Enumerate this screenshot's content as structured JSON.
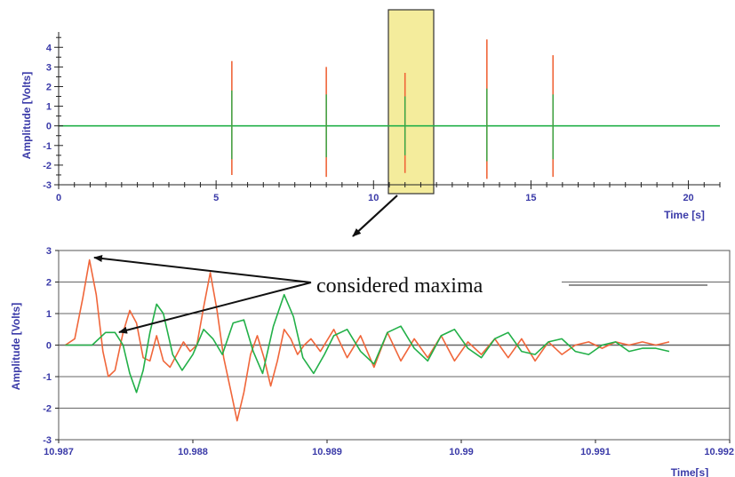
{
  "colors": {
    "series_red": "#f0663a",
    "series_green": "#22b048",
    "axis_text": "#3a3aa8",
    "highlight_fill": "#f4ec9c",
    "grid": "#666666"
  },
  "annotation": {
    "text": "considered maxima"
  },
  "chart_data": [
    {
      "type": "line",
      "title": "",
      "xlabel": "Time [s]",
      "ylabel": "Amplitude [Volts]",
      "xlim": [
        0,
        21
      ],
      "ylim": [
        -3,
        4.6
      ],
      "xticks": [
        0,
        5,
        10,
        15,
        20
      ],
      "yticks": [
        -3,
        -2,
        -1,
        0,
        1,
        2,
        3,
        4
      ],
      "grid": false,
      "baseline": 0,
      "highlight_region": [
        10.6,
        11.9
      ],
      "series": [
        {
          "color": "#f0663a",
          "x": [
            5.5,
            8.5,
            11.0,
            13.6,
            15.7
          ],
          "values": [
            3.3,
            3.0,
            2.7,
            4.4,
            3.6
          ],
          "min_values": [
            -2.5,
            -2.6,
            -2.4,
            -2.7,
            -2.6
          ]
        },
        {
          "color": "#22b048",
          "x": [
            5.5,
            8.5,
            11.0,
            13.6,
            15.7
          ],
          "values": [
            1.8,
            1.6,
            1.5,
            1.9,
            1.6
          ],
          "min_values": [
            -1.7,
            -1.6,
            -1.5,
            -1.8,
            -1.7
          ]
        }
      ]
    },
    {
      "type": "line",
      "title": "",
      "xlabel": "Time[s]",
      "ylabel": "Amplitude [Volts]",
      "xlim": [
        10.987,
        10.992
      ],
      "ylim": [
        -3,
        3
      ],
      "xticks": [
        10.987,
        10.988,
        10.989,
        10.99,
        10.991,
        10.992
      ],
      "xtick_labels": [
        "10.987",
        "10.988",
        "10.989",
        "10.99",
        "10.991",
        "10.992"
      ],
      "yticks": [
        -3,
        -2,
        -1,
        0,
        1,
        2,
        3
      ],
      "grid": true,
      "series": [
        {
          "color": "#f0663a",
          "x": [
            10.98705,
            10.98712,
            10.98718,
            10.98723,
            10.98728,
            10.98733,
            10.98737,
            10.98742,
            10.98748,
            10.98753,
            10.98758,
            10.98763,
            10.98768,
            10.98773,
            10.98778,
            10.98783,
            10.98788,
            10.98793,
            10.98798,
            10.98803,
            10.98808,
            10.98813,
            10.98818,
            10.98823,
            10.98828,
            10.98833,
            10.98838,
            10.98843,
            10.98848,
            10.98853,
            10.98858,
            10.98863,
            10.98868,
            10.98873,
            10.98878,
            10.98883,
            10.98888,
            10.98895,
            10.98905,
            10.98915,
            10.98925,
            10.98935,
            10.98945,
            10.98955,
            10.98965,
            10.98975,
            10.98985,
            10.98995,
            10.99005,
            10.99015,
            10.99025,
            10.99035,
            10.99045,
            10.99055,
            10.99065,
            10.99075,
            10.99085,
            10.99095,
            10.99105,
            10.99115,
            10.99125,
            10.99135,
            10.99145,
            10.99155
          ],
          "values": [
            0.0,
            0.2,
            1.5,
            2.7,
            1.6,
            -0.2,
            -1.0,
            -0.8,
            0.4,
            1.1,
            0.7,
            -0.4,
            -0.5,
            0.3,
            -0.5,
            -0.7,
            -0.3,
            0.1,
            -0.2,
            0.0,
            1.2,
            2.3,
            1.1,
            -0.4,
            -1.4,
            -2.4,
            -1.5,
            -0.3,
            0.3,
            -0.4,
            -1.3,
            -0.5,
            0.5,
            0.2,
            -0.3,
            0.0,
            0.2,
            -0.2,
            0.5,
            -0.4,
            0.3,
            -0.7,
            0.4,
            -0.5,
            0.2,
            -0.4,
            0.3,
            -0.5,
            0.1,
            -0.3,
            0.2,
            -0.4,
            0.2,
            -0.5,
            0.1,
            -0.3,
            0.0,
            0.1,
            -0.1,
            0.1,
            0.0,
            0.1,
            0.0,
            0.1
          ]
        },
        {
          "color": "#22b048",
          "x": [
            10.98705,
            10.98725,
            10.98735,
            10.98742,
            10.98748,
            10.98753,
            10.98758,
            10.98763,
            10.98768,
            10.98773,
            10.98778,
            10.98785,
            10.98792,
            10.988,
            10.98808,
            10.98815,
            10.98822,
            10.9883,
            10.98838,
            10.98845,
            10.98852,
            10.9886,
            10.98868,
            10.98875,
            10.98882,
            10.9889,
            10.98898,
            10.98905,
            10.98915,
            10.98925,
            10.98935,
            10.98945,
            10.98955,
            10.98965,
            10.98975,
            10.98985,
            10.98995,
            10.99005,
            10.99015,
            10.99025,
            10.99035,
            10.99045,
            10.99055,
            10.99065,
            10.99075,
            10.99085,
            10.99095,
            10.99105,
            10.99115,
            10.99125,
            10.99135,
            10.99145,
            10.99155
          ],
          "values": [
            0.0,
            0.0,
            0.4,
            0.4,
            0.0,
            -0.9,
            -1.5,
            -0.8,
            0.4,
            1.3,
            1.0,
            -0.3,
            -0.8,
            -0.3,
            0.5,
            0.2,
            -0.3,
            0.7,
            0.8,
            -0.2,
            -0.9,
            0.6,
            1.6,
            0.9,
            -0.4,
            -0.9,
            -0.3,
            0.3,
            0.5,
            -0.2,
            -0.6,
            0.4,
            0.6,
            -0.1,
            -0.5,
            0.3,
            0.5,
            -0.1,
            -0.4,
            0.2,
            0.4,
            -0.2,
            -0.3,
            0.1,
            0.2,
            -0.2,
            -0.3,
            0.0,
            0.1,
            -0.2,
            -0.1,
            -0.1,
            -0.2
          ]
        }
      ]
    }
  ]
}
